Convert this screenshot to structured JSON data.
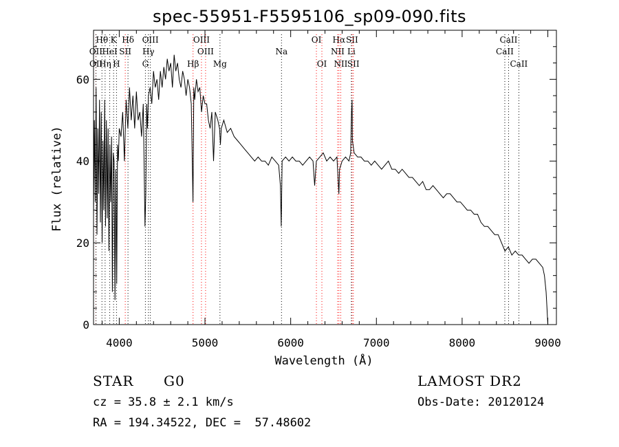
{
  "chart_data": {
    "type": "line",
    "title": "spec-55951-F5595106_sp09-090.fits",
    "xlabel": "Wavelength (Å)",
    "ylabel": "Flux (relative)",
    "xlim": [
      3700,
      9100
    ],
    "ylim": [
      0,
      72
    ],
    "x_ticks": [
      "4000",
      "5000",
      "6000",
      "7000",
      "8000",
      "9000"
    ],
    "y_ticks": [
      "0",
      "20",
      "40",
      "60"
    ],
    "grid": false,
    "series": [
      {
        "x": [
          3700,
          3710,
          3720,
          3730,
          3740,
          3750,
          3760,
          3770,
          3780,
          3790,
          3800,
          3810,
          3820,
          3830,
          3840,
          3850,
          3860,
          3870,
          3880,
          3890,
          3900,
          3910,
          3920,
          3930,
          3940,
          3950,
          3960,
          3970,
          3980,
          3990,
          4000,
          4020,
          4040,
          4060,
          4080,
          4100,
          4120,
          4140,
          4160,
          4180,
          4200,
          4220,
          4240,
          4260,
          4280,
          4300,
          4310,
          4320,
          4330,
          4340,
          4360,
          4380,
          4400,
          4420,
          4440,
          4460,
          4480,
          4500,
          4520,
          4540,
          4560,
          4580,
          4600,
          4620,
          4640,
          4660,
          4680,
          4700,
          4720,
          4740,
          4760,
          4780,
          4800,
          4820,
          4840,
          4860,
          4870,
          4880,
          4900,
          4920,
          4940,
          4960,
          4980,
          5000,
          5020,
          5040,
          5060,
          5080,
          5100,
          5120,
          5150,
          5170,
          5180,
          5190,
          5220,
          5260,
          5300,
          5340,
          5380,
          5420,
          5460,
          5500,
          5540,
          5580,
          5620,
          5660,
          5700,
          5740,
          5780,
          5820,
          5860,
          5880,
          5890,
          5900,
          5940,
          5980,
          6020,
          6060,
          6100,
          6140,
          6180,
          6220,
          6260,
          6280,
          6300,
          6340,
          6380,
          6420,
          6460,
          6500,
          6540,
          6562,
          6570,
          6600,
          6640,
          6680,
          6700,
          6710,
          6716,
          6720,
          6740,
          6780,
          6820,
          6860,
          6900,
          6940,
          6980,
          7020,
          7060,
          7100,
          7140,
          7180,
          7220,
          7260,
          7300,
          7340,
          7380,
          7420,
          7460,
          7500,
          7540,
          7580,
          7620,
          7660,
          7700,
          7740,
          7780,
          7820,
          7860,
          7900,
          7940,
          7980,
          8020,
          8060,
          8100,
          8140,
          8180,
          8220,
          8260,
          8300,
          8340,
          8380,
          8420,
          8460,
          8500,
          8540,
          8580,
          8620,
          8660,
          8700,
          8740,
          8780,
          8820,
          8860,
          8900,
          8940,
          8960,
          8980,
          8990,
          9000
        ],
        "y": [
          27,
          50,
          30,
          58,
          22,
          48,
          32,
          55,
          25,
          52,
          20,
          45,
          28,
          55,
          24,
          50,
          26,
          48,
          18,
          44,
          30,
          46,
          8,
          42,
          40,
          6,
          38,
          10,
          44,
          40,
          48,
          46,
          52,
          40,
          55,
          48,
          58,
          50,
          56,
          48,
          57,
          50,
          52,
          46,
          54,
          24,
          32,
          54,
          48,
          56,
          58,
          54,
          62,
          58,
          60,
          55,
          62,
          58,
          63,
          60,
          65,
          62,
          64,
          58,
          66,
          62,
          64,
          60,
          58,
          62,
          60,
          56,
          60,
          58,
          54,
          30,
          58,
          55,
          60,
          57,
          58,
          52,
          56,
          54,
          54,
          50,
          48,
          52,
          40,
          52,
          50,
          48,
          44,
          48,
          50,
          47,
          48,
          46,
          45,
          44,
          43,
          42,
          41,
          40,
          41,
          40,
          40,
          39,
          41,
          40,
          39,
          34,
          24,
          40,
          41,
          40,
          41,
          40,
          40,
          39,
          40,
          41,
          40,
          34,
          40,
          41,
          42,
          40,
          41,
          40,
          41,
          32,
          38,
          40,
          41,
          40,
          42,
          52,
          55,
          45,
          42,
          41,
          41,
          40,
          40,
          39,
          40,
          39,
          38,
          39,
          40,
          38,
          38,
          37,
          38,
          37,
          36,
          36,
          35,
          34,
          35,
          33,
          33,
          34,
          33,
          32,
          31,
          32,
          32,
          31,
          30,
          30,
          29,
          28,
          28,
          27,
          27,
          25,
          24,
          24,
          23,
          22,
          22,
          20,
          18,
          19,
          17,
          18,
          17,
          17,
          16,
          15,
          16,
          16,
          15,
          14,
          12,
          8,
          4,
          0
        ]
      }
    ],
    "lines": [
      {
        "label": "Hθ",
        "x": 3798,
        "row": 1,
        "color": "#000000"
      },
      {
        "label": "K",
        "x": 3934,
        "row": 1,
        "color": "#000000"
      },
      {
        "label": "Hδ",
        "x": 4102,
        "row": 1,
        "color": "#000000"
      },
      {
        "label": "OIII",
        "x": 4363,
        "row": 1,
        "color": "#000000"
      },
      {
        "label": "OIII",
        "x": 4959,
        "row": 1,
        "color": "#ff0000"
      },
      {
        "label": "OI",
        "x": 6300,
        "row": 1,
        "color": "#ff0000"
      },
      {
        "label": "Hα",
        "x": 6563,
        "row": 1,
        "color": "#ff0000"
      },
      {
        "label": "SII",
        "x": 6716,
        "row": 1,
        "color": "#ff0000"
      },
      {
        "label": "CaII",
        "x": 8542,
        "row": 1,
        "color": "#000000"
      },
      {
        "label": "OII",
        "x": 3727,
        "row": 2,
        "color": "#ff0000"
      },
      {
        "label": "HeI",
        "x": 3889,
        "row": 2,
        "color": "#000000"
      },
      {
        "label": "SII",
        "x": 4070,
        "row": 2,
        "color": "#ff0000"
      },
      {
        "label": "Hγ",
        "x": 4340,
        "row": 2,
        "color": "#000000"
      },
      {
        "label": "OIII",
        "x": 5007,
        "row": 2,
        "color": "#ff0000"
      },
      {
        "label": "Na",
        "x": 5893,
        "row": 2,
        "color": "#000000"
      },
      {
        "label": "NII",
        "x": 6548,
        "row": 2,
        "color": "#ff0000"
      },
      {
        "label": "Li",
        "x": 6708,
        "row": 2,
        "color": "#000000"
      },
      {
        "label": "CaII",
        "x": 8498,
        "row": 2,
        "color": "#000000"
      },
      {
        "label": "OII",
        "x": 3729,
        "row": 3,
        "color": "#000000"
      },
      {
        "label": "Hη",
        "x": 3835,
        "row": 3,
        "color": "#000000"
      },
      {
        "label": "H",
        "x": 3968,
        "row": 3,
        "color": "#000000"
      },
      {
        "label": "G",
        "x": 4305,
        "row": 3,
        "color": "#000000"
      },
      {
        "label": "Hβ",
        "x": 4861,
        "row": 3,
        "color": "#ff0000"
      },
      {
        "label": "Mg",
        "x": 5175,
        "row": 3,
        "color": "#000000"
      },
      {
        "label": "OI",
        "x": 6364,
        "row": 3,
        "color": "#ff0000"
      },
      {
        "label": "NII",
        "x": 6584,
        "row": 3,
        "color": "#ff0000"
      },
      {
        "label": "SII",
        "x": 6731,
        "row": 3,
        "color": "#ff0000"
      },
      {
        "label": "CaII",
        "x": 8662,
        "row": 3,
        "color": "#000000"
      }
    ]
  },
  "info": {
    "class": "STAR",
    "subclass": "G0",
    "survey": "LAMOST DR2",
    "cz": "cz = 35.8 ± 2.1 km/s",
    "obs_date": "Obs-Date: 20120124",
    "coords": "RA = 194.34522, DEC =  57.48602"
  }
}
